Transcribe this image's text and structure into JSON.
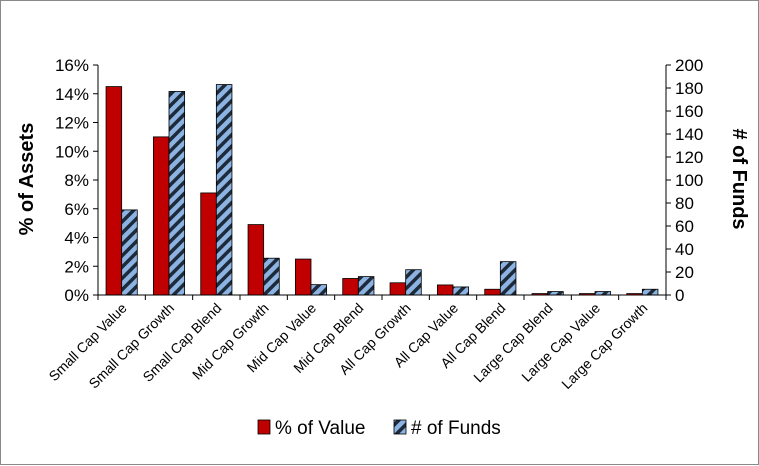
{
  "chart_data": {
    "type": "bar",
    "categories": [
      "Small Cap Value",
      "Small Cap Growth",
      "Small Cap Blend",
      "Mid Cap Growth",
      "Mid Cap Value",
      "Mid Cap Blend",
      "All Cap Growth",
      "All Cap Value",
      "All Cap Blend",
      "Large Cap Blend",
      "Large Cap Value",
      "Large Cap Growth"
    ],
    "series": [
      {
        "name": "% of Value",
        "axis": "left",
        "color": "#c00000",
        "values": [
          14.5,
          11.0,
          7.1,
          4.9,
          2.5,
          1.15,
          0.85,
          0.7,
          0.4,
          0.1,
          0.1,
          0.1
        ]
      },
      {
        "name": "# of Funds",
        "axis": "right",
        "color": "#8db3e2",
        "pattern": "diagonal-stripes",
        "values": [
          74,
          177,
          183,
          32,
          9,
          16,
          22,
          7,
          29,
          3,
          3,
          5
        ]
      }
    ],
    "ylabel": "% of Assets",
    "y2label": "# of Funds",
    "ylim": [
      0,
      16
    ],
    "y2lim": [
      0,
      200
    ],
    "yticks": [
      "0%",
      "2%",
      "4%",
      "6%",
      "8%",
      "10%",
      "12%",
      "14%",
      "16%"
    ],
    "y2ticks": [
      "0",
      "20",
      "40",
      "60",
      "80",
      "100",
      "120",
      "140",
      "160",
      "180",
      "200"
    ],
    "legend_position": "bottom",
    "grid": false
  }
}
